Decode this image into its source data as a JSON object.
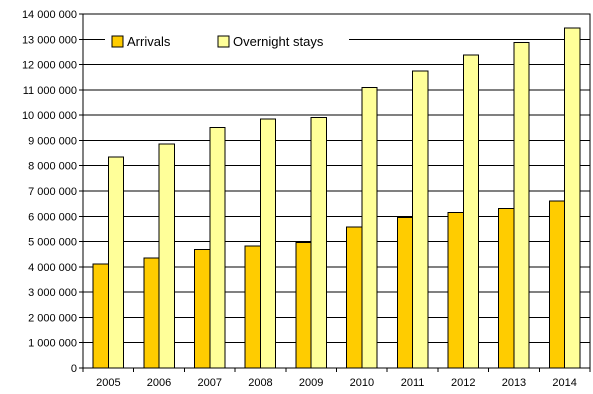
{
  "chart_data": {
    "type": "bar",
    "categories": [
      "2005",
      "2006",
      "2007",
      "2008",
      "2009",
      "2010",
      "2011",
      "2012",
      "2013",
      "2014"
    ],
    "series": [
      {
        "name": "Arrivals",
        "color": "#FFCC00",
        "values": [
          4120000,
          4350000,
          4690000,
          4820000,
          4960000,
          5580000,
          5950000,
          6140000,
          6300000,
          6600000
        ]
      },
      {
        "name": "Overnight stays",
        "color": "#FFFF99",
        "values": [
          8350000,
          8850000,
          9520000,
          9850000,
          9900000,
          11100000,
          11750000,
          12370000,
          12880000,
          13450000
        ]
      }
    ],
    "ylim": [
      0,
      14000000
    ],
    "yticks": [
      "0",
      "1 000 000",
      "2 000 000",
      "3 000 000",
      "4 000 000",
      "5 000 000",
      "6 000 000",
      "7 000 000",
      "8 000 000",
      "9 000 000",
      "10 000 000",
      "11 000 000",
      "12 000 000",
      "13 000 000",
      "14 000 000"
    ],
    "grid": true,
    "legend_position": "top",
    "xlabel": "",
    "ylabel": "",
    "title": ""
  }
}
